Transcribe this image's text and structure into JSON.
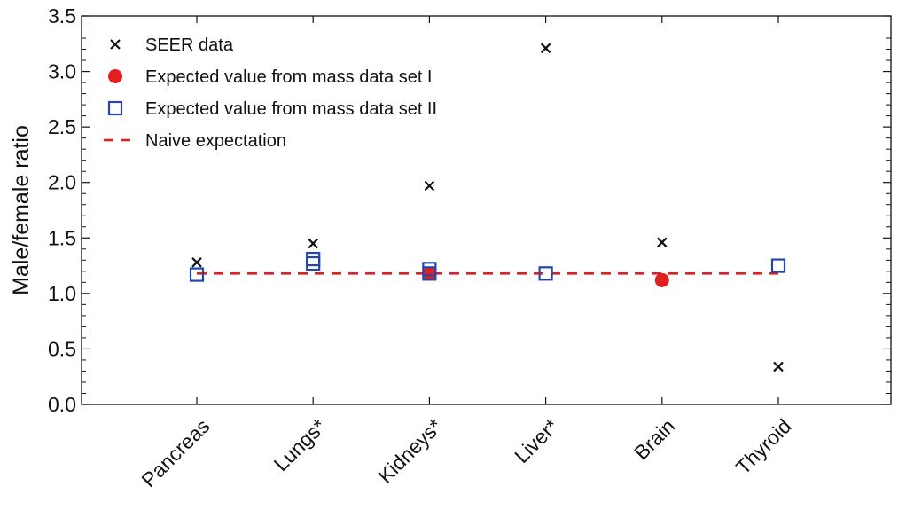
{
  "chart_data": {
    "type": "scatter",
    "ylabel": "Male/female ratio",
    "xlabel": "",
    "ylim": [
      0.0,
      3.5
    ],
    "yticks": [
      "0.0",
      "0.5",
      "1.0",
      "1.5",
      "2.0",
      "2.5",
      "3.0",
      "3.5"
    ],
    "categories": [
      "Pancreas",
      "Lungs*",
      "Kidneys*",
      "Liver*",
      "Brain",
      "Thyroid"
    ],
    "grid": false,
    "legend_position": "top-left",
    "series": [
      {
        "name": "SEER data",
        "marker": "x",
        "color": "#111111",
        "points": [
          {
            "category": "Pancreas",
            "y": 1.28
          },
          {
            "category": "Lungs*",
            "y": 1.45
          },
          {
            "category": "Kidneys*",
            "y": 1.97
          },
          {
            "category": "Liver*",
            "y": 3.21
          },
          {
            "category": "Brain",
            "y": 1.46
          },
          {
            "category": "Thyroid",
            "y": 0.34
          }
        ]
      },
      {
        "name": "Expected value from mass data set I",
        "marker": "filled-circle",
        "color": "#e02020",
        "points": [
          {
            "category": "Kidneys*",
            "y": 1.18
          },
          {
            "category": "Brain",
            "y": 1.12
          }
        ]
      },
      {
        "name": "Expected value from mass data set II",
        "marker": "open-square",
        "color": "#2447a8",
        "points": [
          {
            "category": "Pancreas",
            "y": 1.17
          },
          {
            "category": "Lungs*",
            "y": 1.27
          },
          {
            "category": "Lungs*",
            "y": 1.31
          },
          {
            "category": "Kidneys*",
            "y": 1.18
          },
          {
            "category": "Kidneys*",
            "y": 1.22
          },
          {
            "category": "Liver*",
            "y": 1.18
          },
          {
            "category": "Thyroid",
            "y": 1.25
          }
        ]
      },
      {
        "name": "Naive expectation",
        "marker": "dashed-line",
        "color": "#e02020",
        "x_range": [
          "Pancreas",
          "Thyroid"
        ],
        "y": 1.18
      }
    ]
  }
}
